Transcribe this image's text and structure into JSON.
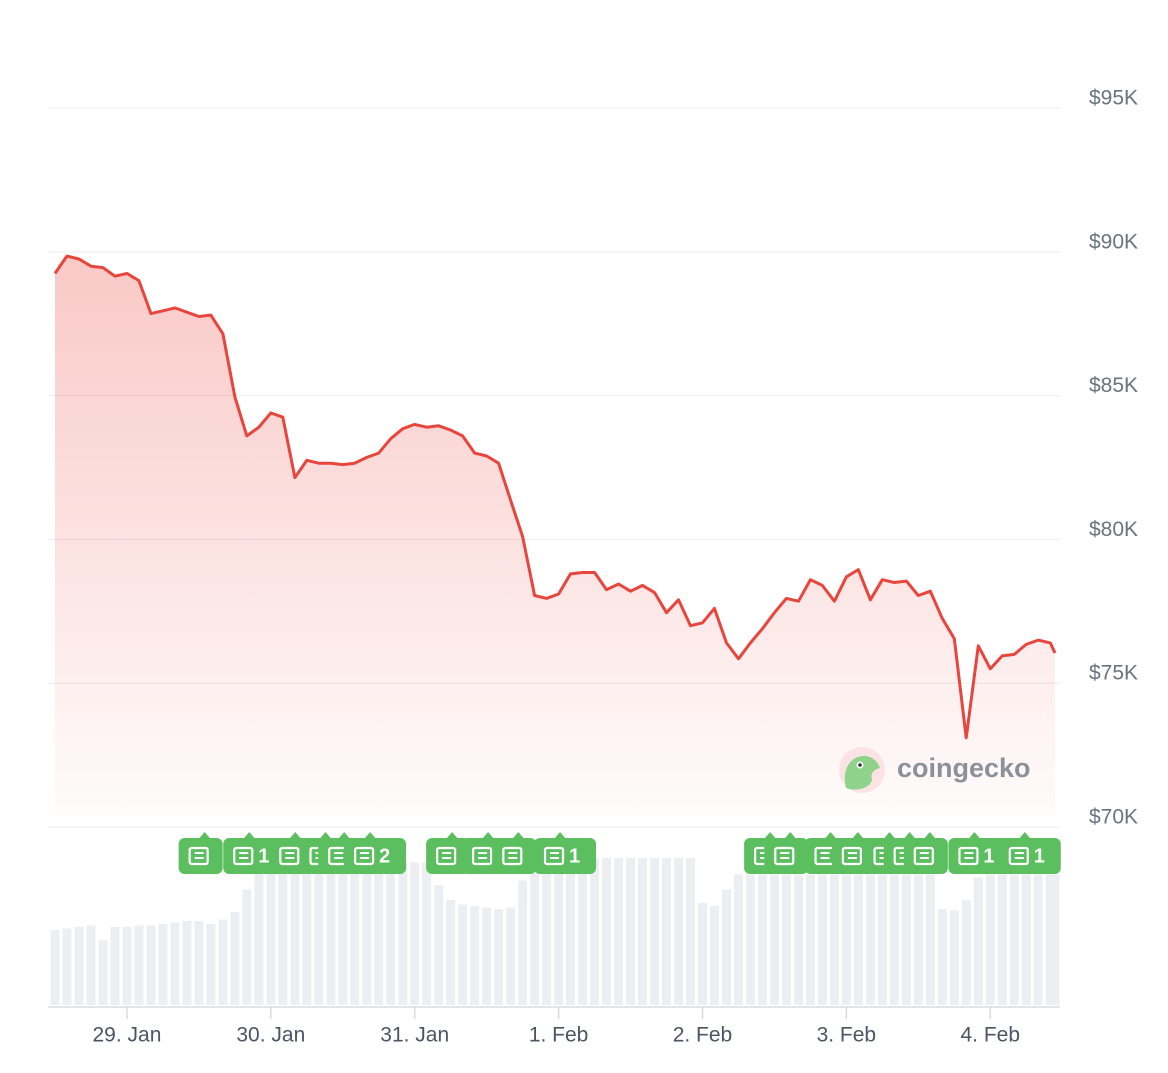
{
  "chart_data": {
    "type": "line",
    "color": "#e8453c",
    "x": [
      -0.5,
      -0.417,
      -0.333,
      -0.25,
      -0.167,
      -0.083,
      0,
      0.083,
      0.167,
      0.25,
      0.333,
      0.417,
      0.5,
      0.583,
      0.667,
      0.75,
      0.833,
      0.917,
      1,
      1.083,
      1.167,
      1.25,
      1.333,
      1.417,
      1.5,
      1.583,
      1.667,
      1.75,
      1.833,
      1.917,
      2,
      2.083,
      2.167,
      2.25,
      2.333,
      2.417,
      2.5,
      2.583,
      2.667,
      2.75,
      2.833,
      2.917,
      3,
      3.083,
      3.167,
      3.25,
      3.333,
      3.417,
      3.5,
      3.583,
      3.667,
      3.75,
      3.833,
      3.917,
      4,
      4.083,
      4.167,
      4.25,
      4.333,
      4.417,
      4.5,
      4.583,
      4.667,
      4.75,
      4.833,
      4.917,
      5,
      5.083,
      5.167,
      5.25,
      5.333,
      5.417,
      5.5,
      5.583,
      5.667,
      5.75,
      5.833,
      5.917,
      6,
      6.083,
      6.167,
      6.25,
      6.333,
      6.417,
      6.45
    ],
    "values": [
      89250,
      89850,
      89750,
      89500,
      89450,
      89150,
      89250,
      89000,
      87850,
      87950,
      88050,
      87900,
      87750,
      87800,
      87150,
      84950,
      83600,
      83900,
      84400,
      84250,
      82150,
      82750,
      82650,
      82650,
      82600,
      82650,
      82850,
      83000,
      83500,
      83850,
      84000,
      83900,
      83950,
      83800,
      83600,
      83000,
      82900,
      82650,
      81350,
      80100,
      78050,
      77950,
      78100,
      78800,
      78850,
      78850,
      78250,
      78450,
      78200,
      78400,
      78150,
      77450,
      77900,
      77000,
      77100,
      77600,
      76400,
      75850,
      76400,
      76900,
      77450,
      77950,
      77850,
      78600,
      78400,
      77850,
      78700,
      78950,
      77900,
      78600,
      78500,
      78550,
      78050,
      78200,
      77250,
      76550,
      73100,
      76300,
      75500,
      75950,
      76000,
      76350,
      76500,
      76400,
      76050
    ],
    "volume": [
      50,
      51,
      52,
      53,
      43,
      52,
      52,
      53,
      53,
      54,
      55,
      56,
      56,
      54,
      57,
      62,
      77,
      88,
      95,
      95,
      95,
      95,
      95,
      95,
      95,
      95,
      95,
      95,
      95,
      95,
      95,
      95,
      80,
      70,
      67,
      66,
      65,
      64,
      65,
      83,
      98,
      98,
      98,
      98,
      98,
      98,
      98,
      98,
      98,
      98,
      98,
      98,
      98,
      98,
      68,
      66,
      77,
      87,
      87,
      87,
      87,
      87,
      87,
      87,
      87,
      87,
      87,
      87,
      87,
      87,
      87,
      87,
      87,
      87,
      64,
      63,
      70,
      85,
      87,
      87,
      87,
      87,
      87,
      87,
      87
    ],
    "news": [
      {
        "x": 0.54,
        "label": null
      },
      {
        "x": 0.85,
        "label": "1"
      },
      {
        "x": 1.17,
        "label": null
      },
      {
        "x": 1.38,
        "label": null
      },
      {
        "x": 1.51,
        "label": null
      },
      {
        "x": 1.69,
        "label": "2"
      },
      {
        "x": 2.26,
        "label": null
      },
      {
        "x": 2.51,
        "label": null
      },
      {
        "x": 2.72,
        "label": null
      },
      {
        "x": 3.01,
        "label": "1"
      },
      {
        "x": 4.47,
        "label": null
      },
      {
        "x": 4.61,
        "label": null
      },
      {
        "x": 4.89,
        "label": null
      },
      {
        "x": 5.08,
        "label": "1"
      },
      {
        "x": 5.3,
        "label": null
      },
      {
        "x": 5.44,
        "label": null
      },
      {
        "x": 5.58,
        "label": null
      },
      {
        "x": 5.89,
        "label": "1"
      },
      {
        "x": 6.24,
        "label": "1"
      }
    ],
    "watermark": "coingecko",
    "xlim": [
      -0.5,
      6.45
    ],
    "xticks": [
      {
        "value": 0,
        "label": "29. Jan"
      },
      {
        "value": 1,
        "label": "30. Jan"
      },
      {
        "value": 2,
        "label": "31. Jan"
      },
      {
        "value": 3,
        "label": "1. Feb"
      },
      {
        "value": 4,
        "label": "2. Feb"
      },
      {
        "value": 5,
        "label": "3. Feb"
      },
      {
        "value": 6,
        "label": "4. Feb"
      }
    ],
    "ylim": [
      70000,
      95000
    ],
    "yticks": [
      {
        "value": 70000,
        "label": "$70K"
      },
      {
        "value": 75000,
        "label": "$75K"
      },
      {
        "value": 80000,
        "label": "$80K"
      },
      {
        "value": 85000,
        "label": "$85K"
      },
      {
        "value": 90000,
        "label": "$90K"
      },
      {
        "value": 95000,
        "label": "$95K"
      }
    ],
    "grid": true
  }
}
